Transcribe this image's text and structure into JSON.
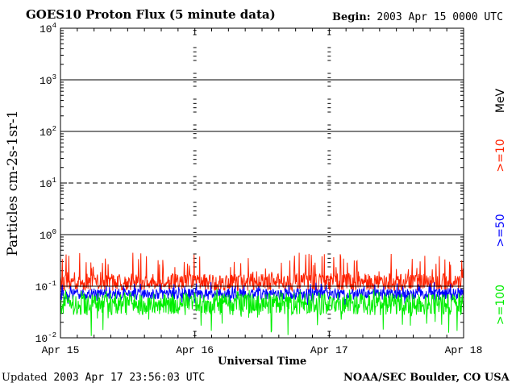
{
  "header": {
    "title": "GOES10 Proton Flux (5 minute data)",
    "begin_label": "Begin:",
    "begin_value": "2003 Apr 15 0000 UTC"
  },
  "footer": {
    "updated_label": "Updated",
    "updated_value": "2003 Apr 17 23:56:03 UTC",
    "credit": "NOAA/SEC Boulder, CO USA"
  },
  "chart_data": {
    "type": "line",
    "title": "GOES10 Proton Flux (5 minute data)",
    "xlabel": "Universal Time",
    "ylabel": "Particles cm-2s-1sr-1",
    "yscale": "log",
    "ylim": [
      0.01,
      10000
    ],
    "xlim": [
      "Apr 15",
      "Apr 18"
    ],
    "x_ticks": [
      "Apr 15",
      "Apr 16",
      "Apr 17",
      "Apr 18"
    ],
    "y_ticks": [
      {
        "base": "10",
        "exp": "-2"
      },
      {
        "base": "10",
        "exp": "-1"
      },
      {
        "base": "10",
        "exp": "0"
      },
      {
        "base": "10",
        "exp": "1"
      },
      {
        "base": "10",
        "exp": "2"
      },
      {
        "base": "10",
        "exp": "3"
      },
      {
        "base": "10",
        "exp": "4"
      }
    ],
    "right_axis_unit": "MeV",
    "threshold_line": {
      "value": 10,
      "style": "dashed"
    },
    "alert_line": {
      "value": 0.1,
      "color": "#000000"
    },
    "series": [
      {
        "name": ">=10",
        "color": "#ff2200",
        "typical": 0.12,
        "min": 0.08,
        "max": 0.45
      },
      {
        "name": ">=50",
        "color": "#0000ff",
        "typical": 0.07,
        "min": 0.04,
        "max": 0.12
      },
      {
        "name": ">=100",
        "color": "#00ee00",
        "typical": 0.045,
        "min": 0.01,
        "max": 0.09
      }
    ]
  }
}
